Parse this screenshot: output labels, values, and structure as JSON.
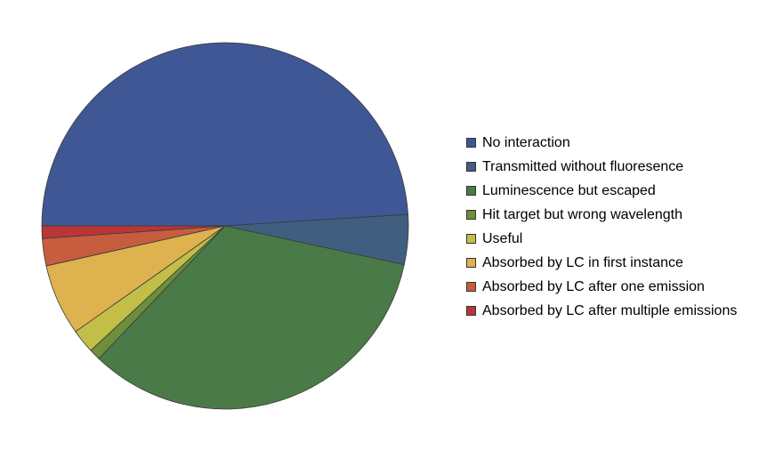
{
  "chart_data": {
    "type": "pie",
    "title": "",
    "start_angle_deg": 180,
    "direction": "clockwise",
    "legend_position": "right",
    "slices": [
      {
        "label": "No interaction",
        "value": 49.0,
        "color": "#3F5795"
      },
      {
        "label": "Transmitted without fluoresence",
        "value": 4.4,
        "color": "#405F80"
      },
      {
        "label": "Luminescence but escaped",
        "value": 33.7,
        "color": "#4A7A47"
      },
      {
        "label": "Hit target but wrong wavelength",
        "value": 1.0,
        "color": "#6B8F3A"
      },
      {
        "label": "Useful",
        "value": 2.1,
        "color": "#C3BE48"
      },
      {
        "label": "Absorbed by LC in first instance",
        "value": 6.3,
        "color": "#DDB24F"
      },
      {
        "label": "Absorbed by LC after one emission",
        "value": 2.4,
        "color": "#C65D3F"
      },
      {
        "label": "Absorbed by LC after multiple emissions",
        "value": 1.1,
        "color": "#B93537"
      }
    ]
  }
}
